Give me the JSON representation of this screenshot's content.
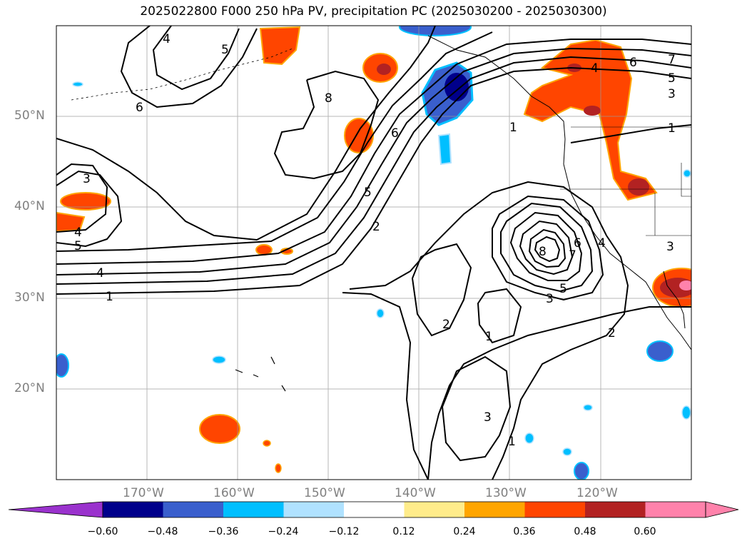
{
  "title": "2025022800 F000 250 hPa PV, precipitation PC (2025030200 - 2025030300)",
  "map": {
    "lat_labels": [
      "50°N",
      "40°N",
      "30°N",
      "20°N"
    ],
    "lon_labels": [
      "170°W",
      "160°W",
      "150°W",
      "140°W",
      "130°W",
      "120°W"
    ],
    "contour_labels": [
      "1",
      "2",
      "3",
      "4",
      "5",
      "6",
      "7",
      "8"
    ]
  },
  "colorbar": {
    "ticks": [
      "−0.60",
      "−0.48",
      "−0.36",
      "−0.24",
      "−0.12",
      "0.12",
      "0.24",
      "0.36",
      "0.48",
      "0.60"
    ],
    "colors": [
      "#9a32cd",
      "#00008b",
      "#3a5fcd",
      "#00bfff",
      "#b0e2ff",
      "#ffffff",
      "#ffec8b",
      "#ffa500",
      "#ff4500",
      "#b22222",
      "#ff82ab"
    ]
  }
}
